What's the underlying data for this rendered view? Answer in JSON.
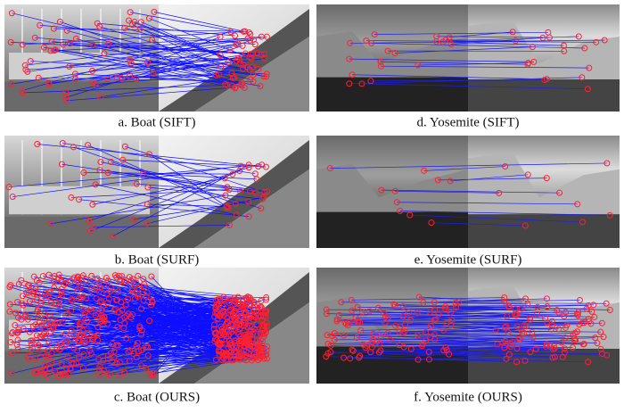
{
  "figure": {
    "panels": [
      {
        "caption": "a. Boat (SIFT)"
      },
      {
        "caption": "d. Yosemite (SIFT)"
      },
      {
        "caption": "b. Boat (SURF)"
      },
      {
        "caption": "e. Yosemite (SURF)"
      },
      {
        "caption": "c. Boat (OURS)"
      },
      {
        "caption": "f. Yosemite (OURS)"
      }
    ]
  }
}
